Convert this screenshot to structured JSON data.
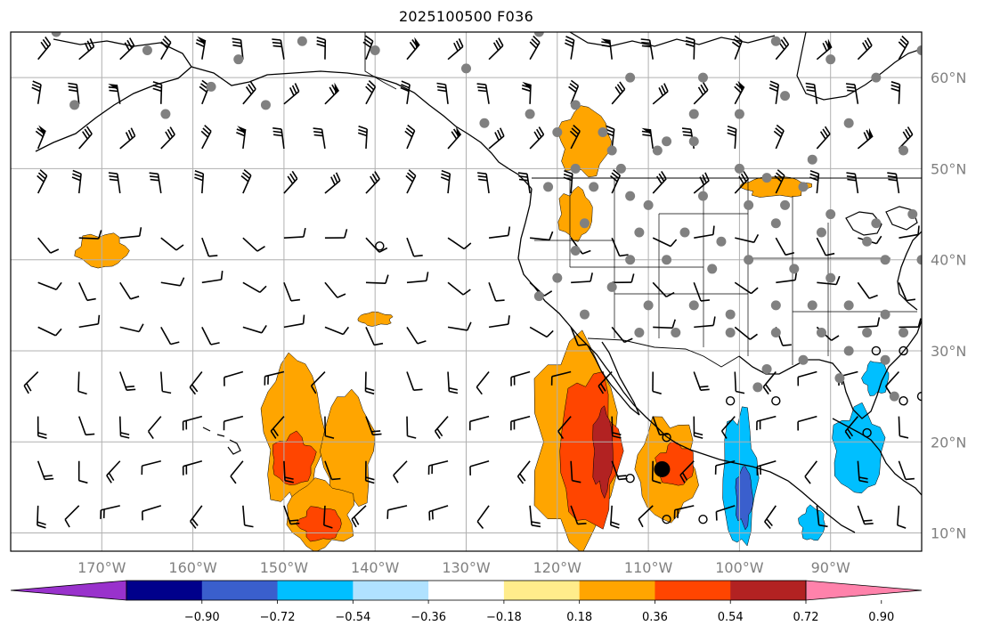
{
  "title": "2025100500 F036",
  "map": {
    "projection": "PlateCarree",
    "lon_range": [
      -180,
      -80
    ],
    "lat_range": [
      8,
      65
    ],
    "gridlines": true,
    "lon_ticks": [
      {
        "lon": -170,
        "label": "170°W"
      },
      {
        "lon": -160,
        "label": "160°W"
      },
      {
        "lon": -150,
        "label": "150°W"
      },
      {
        "lon": -140,
        "label": "140°W"
      },
      {
        "lon": -130,
        "label": "130°W"
      },
      {
        "lon": -120,
        "label": "120°W"
      },
      {
        "lon": -110,
        "label": "110°W"
      },
      {
        "lon": -100,
        "label": "100°W"
      },
      {
        "lon": -90,
        "label": "90°W"
      }
    ],
    "lat_ticks": [
      {
        "lat": 10,
        "label": "10°N"
      },
      {
        "lat": 20,
        "label": "20°N"
      },
      {
        "lat": 30,
        "label": "30°N"
      },
      {
        "lat": 40,
        "label": "40°N"
      },
      {
        "lat": 50,
        "label": "50°N"
      },
      {
        "lat": 60,
        "label": "60°N"
      }
    ]
  },
  "colorbar": {
    "extend": "both",
    "colors": [
      "#9932CC",
      "#00008B",
      "#3A5FCD",
      "#00BFFF",
      "#B0E2FF",
      "#FFFFFF",
      "#FFEC8B",
      "#FFA500",
      "#FF4500",
      "#B22222",
      "#FF82AB"
    ],
    "tick_labels": [
      "−0.90",
      "−0.72",
      "−0.54",
      "−0.36",
      "−0.18",
      "0.18",
      "0.36",
      "0.54",
      "0.72",
      "0.90"
    ]
  },
  "shading": [
    {
      "level": 0.36,
      "color": "#FFA500",
      "regions": [
        {
          "lon": -118,
          "lat": 20,
          "rlon": 5,
          "rlat": 12
        },
        {
          "lon": -149,
          "lat": 21,
          "rlon": 3.5,
          "rlat": 9
        },
        {
          "lon": -143,
          "lat": 19,
          "rlon": 3,
          "rlat": 7
        },
        {
          "lon": -146,
          "lat": 12,
          "rlon": 4,
          "rlat": 4
        },
        {
          "lon": -108,
          "lat": 17,
          "rlon": 3.5,
          "rlat": 6
        },
        {
          "lon": -170,
          "lat": 41,
          "rlon": 3,
          "rlat": 2
        },
        {
          "lon": -118,
          "lat": 45,
          "rlon": 2,
          "rlat": 3
        },
        {
          "lon": -117,
          "lat": 53,
          "rlon": 3,
          "rlat": 4
        },
        {
          "lon": -96,
          "lat": 48,
          "rlon": 4,
          "rlat": 1.2
        },
        {
          "lon": -140,
          "lat": 33.5,
          "rlon": 2,
          "rlat": 0.8
        }
      ]
    },
    {
      "level": 0.54,
      "color": "#FF4500",
      "regions": [
        {
          "lon": -116.5,
          "lat": 19,
          "rlon": 3.5,
          "rlat": 9
        },
        {
          "lon": -149,
          "lat": 18,
          "rlon": 2.5,
          "rlat": 3
        },
        {
          "lon": -107,
          "lat": 17.5,
          "rlon": 2.2,
          "rlat": 2.5
        },
        {
          "lon": -146,
          "lat": 11,
          "rlon": 2.5,
          "rlat": 2
        }
      ]
    },
    {
      "level": 0.72,
      "color": "#B22222",
      "regions": [
        {
          "lon": -115,
          "lat": 19,
          "rlon": 1.2,
          "rlat": 5
        }
      ]
    },
    {
      "level": -0.36,
      "color": "#00BFFF",
      "regions": [
        {
          "lon": -100,
          "lat": 16,
          "rlon": 2,
          "rlat": 8
        },
        {
          "lon": -87,
          "lat": 19,
          "rlon": 3,
          "rlat": 5
        },
        {
          "lon": -92,
          "lat": 11,
          "rlon": 1.5,
          "rlat": 2
        },
        {
          "lon": -85,
          "lat": 27,
          "rlon": 1.5,
          "rlat": 2
        }
      ]
    },
    {
      "level": -0.54,
      "color": "#3A5FCD",
      "regions": [
        {
          "lon": -99.5,
          "lat": 14,
          "rlon": 1,
          "rlat": 3.5
        }
      ]
    }
  ],
  "station_dots": [
    [
      -175,
      65
    ],
    [
      -165,
      63
    ],
    [
      -155,
      62
    ],
    [
      -148,
      64
    ],
    [
      -140,
      63
    ],
    [
      -130,
      61
    ],
    [
      -122,
      65
    ],
    [
      -112,
      60
    ],
    [
      -118,
      57
    ],
    [
      -123,
      56
    ],
    [
      -128,
      55
    ],
    [
      -173,
      57
    ],
    [
      -163,
      56
    ],
    [
      -158,
      59
    ],
    [
      -152,
      57
    ],
    [
      -120,
      54
    ],
    [
      -115,
      54
    ],
    [
      -108,
      53
    ],
    [
      -105,
      53
    ],
    [
      -114,
      52
    ],
    [
      -109,
      52
    ],
    [
      -118,
      50
    ],
    [
      -113,
      50
    ],
    [
      -100,
      50
    ],
    [
      -97,
      49
    ],
    [
      -93,
      48
    ],
    [
      -121,
      48
    ],
    [
      -116,
      48
    ],
    [
      -112,
      47
    ],
    [
      -110,
      46
    ],
    [
      -104,
      47
    ],
    [
      -99,
      46
    ],
    [
      -95,
      46
    ],
    [
      -90,
      45
    ],
    [
      -85,
      44
    ],
    [
      -81,
      45
    ],
    [
      -117,
      44
    ],
    [
      -111,
      43
    ],
    [
      -106,
      43
    ],
    [
      -102,
      42
    ],
    [
      -96,
      44
    ],
    [
      -91,
      43
    ],
    [
      -86,
      42
    ],
    [
      -118,
      41
    ],
    [
      -112,
      40
    ],
    [
      -108,
      40
    ],
    [
      -103,
      39
    ],
    [
      -99,
      40
    ],
    [
      -94,
      39
    ],
    [
      -90,
      38
    ],
    [
      -84,
      40
    ],
    [
      -80,
      40
    ],
    [
      -120,
      38
    ],
    [
      -114,
      37
    ],
    [
      -110,
      35
    ],
    [
      -105,
      35
    ],
    [
      -101,
      34
    ],
    [
      -96,
      35
    ],
    [
      -92,
      35
    ],
    [
      -88,
      35
    ],
    [
      -84,
      34
    ],
    [
      -122,
      36
    ],
    [
      -117,
      34
    ],
    [
      -111,
      32
    ],
    [
      -107,
      32
    ],
    [
      -101,
      32
    ],
    [
      -96,
      32
    ],
    [
      -91,
      32
    ],
    [
      -86,
      32
    ],
    [
      -82,
      32
    ],
    [
      -97,
      28
    ],
    [
      -93,
      29
    ],
    [
      -88,
      30
    ],
    [
      -84,
      29
    ],
    [
      -98,
      26
    ],
    [
      -89,
      27
    ],
    [
      -83,
      25
    ],
    [
      -90,
      62
    ],
    [
      -85,
      60
    ],
    [
      -95,
      58
    ],
    [
      -100,
      56
    ],
    [
      -105,
      56
    ],
    [
      -88,
      55
    ],
    [
      -92,
      51
    ],
    [
      -82,
      52
    ],
    [
      -80,
      63
    ],
    [
      -96,
      64
    ],
    [
      -104,
      60
    ]
  ],
  "open_circles": [
    [
      -139.5,
      41.5
    ],
    [
      -82,
      30
    ],
    [
      -85,
      30
    ],
    [
      -101,
      24.5
    ],
    [
      -96,
      24.5
    ],
    [
      -108,
      20.5
    ],
    [
      -82,
      24.5
    ],
    [
      -108,
      11.5
    ],
    [
      -112,
      16
    ],
    [
      -104,
      11.5
    ],
    [
      -86,
      21
    ],
    [
      -80,
      25
    ]
  ],
  "big_dot": [
    -108.5,
    17
  ]
}
